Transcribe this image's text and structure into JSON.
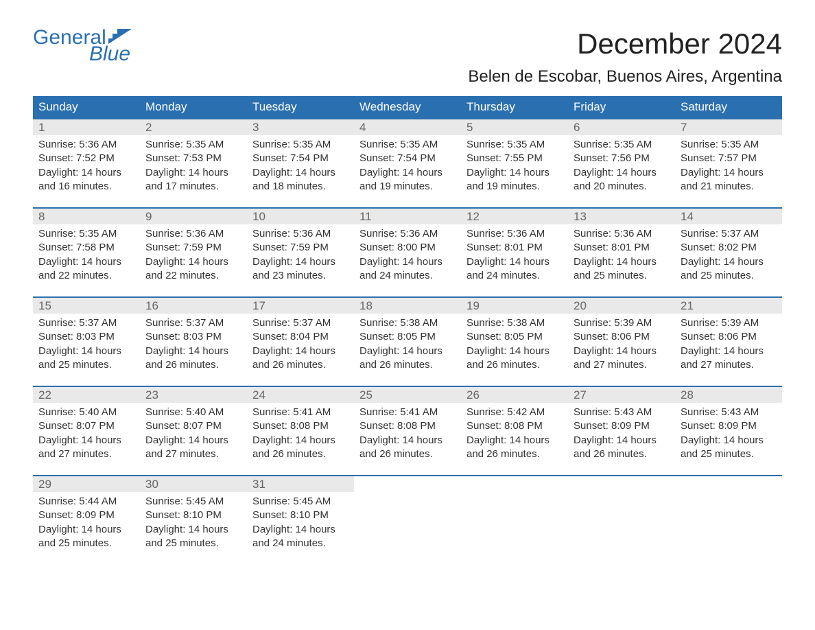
{
  "brand": {
    "word1": "General",
    "word2": "Blue",
    "text_color": "#2a6fb0",
    "flag_color": "#2a6fb0"
  },
  "title": "December 2024",
  "subtitle": "Belen de Escobar, Buenos Aires, Argentina",
  "colors": {
    "header_bg": "#2a6fb0",
    "header_text": "#ffffff",
    "daynum_bg": "#e9e9e9",
    "daynum_text": "#666666",
    "body_text": "#333333",
    "row_border": "#2a6fb0",
    "page_bg": "#ffffff"
  },
  "typography": {
    "title_fontsize": 42,
    "subtitle_fontsize": 24,
    "header_fontsize": 17,
    "daynum_fontsize": 17,
    "body_fontsize": 15
  },
  "day_headers": [
    "Sunday",
    "Monday",
    "Tuesday",
    "Wednesday",
    "Thursday",
    "Friday",
    "Saturday"
  ],
  "weeks": [
    [
      {
        "day": "1",
        "sunrise": "Sunrise: 5:36 AM",
        "sunset": "Sunset: 7:52 PM",
        "daylight1": "Daylight: 14 hours",
        "daylight2": "and 16 minutes."
      },
      {
        "day": "2",
        "sunrise": "Sunrise: 5:35 AM",
        "sunset": "Sunset: 7:53 PM",
        "daylight1": "Daylight: 14 hours",
        "daylight2": "and 17 minutes."
      },
      {
        "day": "3",
        "sunrise": "Sunrise: 5:35 AM",
        "sunset": "Sunset: 7:54 PM",
        "daylight1": "Daylight: 14 hours",
        "daylight2": "and 18 minutes."
      },
      {
        "day": "4",
        "sunrise": "Sunrise: 5:35 AM",
        "sunset": "Sunset: 7:54 PM",
        "daylight1": "Daylight: 14 hours",
        "daylight2": "and 19 minutes."
      },
      {
        "day": "5",
        "sunrise": "Sunrise: 5:35 AM",
        "sunset": "Sunset: 7:55 PM",
        "daylight1": "Daylight: 14 hours",
        "daylight2": "and 19 minutes."
      },
      {
        "day": "6",
        "sunrise": "Sunrise: 5:35 AM",
        "sunset": "Sunset: 7:56 PM",
        "daylight1": "Daylight: 14 hours",
        "daylight2": "and 20 minutes."
      },
      {
        "day": "7",
        "sunrise": "Sunrise: 5:35 AM",
        "sunset": "Sunset: 7:57 PM",
        "daylight1": "Daylight: 14 hours",
        "daylight2": "and 21 minutes."
      }
    ],
    [
      {
        "day": "8",
        "sunrise": "Sunrise: 5:35 AM",
        "sunset": "Sunset: 7:58 PM",
        "daylight1": "Daylight: 14 hours",
        "daylight2": "and 22 minutes."
      },
      {
        "day": "9",
        "sunrise": "Sunrise: 5:36 AM",
        "sunset": "Sunset: 7:59 PM",
        "daylight1": "Daylight: 14 hours",
        "daylight2": "and 22 minutes."
      },
      {
        "day": "10",
        "sunrise": "Sunrise: 5:36 AM",
        "sunset": "Sunset: 7:59 PM",
        "daylight1": "Daylight: 14 hours",
        "daylight2": "and 23 minutes."
      },
      {
        "day": "11",
        "sunrise": "Sunrise: 5:36 AM",
        "sunset": "Sunset: 8:00 PM",
        "daylight1": "Daylight: 14 hours",
        "daylight2": "and 24 minutes."
      },
      {
        "day": "12",
        "sunrise": "Sunrise: 5:36 AM",
        "sunset": "Sunset: 8:01 PM",
        "daylight1": "Daylight: 14 hours",
        "daylight2": "and 24 minutes."
      },
      {
        "day": "13",
        "sunrise": "Sunrise: 5:36 AM",
        "sunset": "Sunset: 8:01 PM",
        "daylight1": "Daylight: 14 hours",
        "daylight2": "and 25 minutes."
      },
      {
        "day": "14",
        "sunrise": "Sunrise: 5:37 AM",
        "sunset": "Sunset: 8:02 PM",
        "daylight1": "Daylight: 14 hours",
        "daylight2": "and 25 minutes."
      }
    ],
    [
      {
        "day": "15",
        "sunrise": "Sunrise: 5:37 AM",
        "sunset": "Sunset: 8:03 PM",
        "daylight1": "Daylight: 14 hours",
        "daylight2": "and 25 minutes."
      },
      {
        "day": "16",
        "sunrise": "Sunrise: 5:37 AM",
        "sunset": "Sunset: 8:03 PM",
        "daylight1": "Daylight: 14 hours",
        "daylight2": "and 26 minutes."
      },
      {
        "day": "17",
        "sunrise": "Sunrise: 5:37 AM",
        "sunset": "Sunset: 8:04 PM",
        "daylight1": "Daylight: 14 hours",
        "daylight2": "and 26 minutes."
      },
      {
        "day": "18",
        "sunrise": "Sunrise: 5:38 AM",
        "sunset": "Sunset: 8:05 PM",
        "daylight1": "Daylight: 14 hours",
        "daylight2": "and 26 minutes."
      },
      {
        "day": "19",
        "sunrise": "Sunrise: 5:38 AM",
        "sunset": "Sunset: 8:05 PM",
        "daylight1": "Daylight: 14 hours",
        "daylight2": "and 26 minutes."
      },
      {
        "day": "20",
        "sunrise": "Sunrise: 5:39 AM",
        "sunset": "Sunset: 8:06 PM",
        "daylight1": "Daylight: 14 hours",
        "daylight2": "and 27 minutes."
      },
      {
        "day": "21",
        "sunrise": "Sunrise: 5:39 AM",
        "sunset": "Sunset: 8:06 PM",
        "daylight1": "Daylight: 14 hours",
        "daylight2": "and 27 minutes."
      }
    ],
    [
      {
        "day": "22",
        "sunrise": "Sunrise: 5:40 AM",
        "sunset": "Sunset: 8:07 PM",
        "daylight1": "Daylight: 14 hours",
        "daylight2": "and 27 minutes."
      },
      {
        "day": "23",
        "sunrise": "Sunrise: 5:40 AM",
        "sunset": "Sunset: 8:07 PM",
        "daylight1": "Daylight: 14 hours",
        "daylight2": "and 27 minutes."
      },
      {
        "day": "24",
        "sunrise": "Sunrise: 5:41 AM",
        "sunset": "Sunset: 8:08 PM",
        "daylight1": "Daylight: 14 hours",
        "daylight2": "and 26 minutes."
      },
      {
        "day": "25",
        "sunrise": "Sunrise: 5:41 AM",
        "sunset": "Sunset: 8:08 PM",
        "daylight1": "Daylight: 14 hours",
        "daylight2": "and 26 minutes."
      },
      {
        "day": "26",
        "sunrise": "Sunrise: 5:42 AM",
        "sunset": "Sunset: 8:08 PM",
        "daylight1": "Daylight: 14 hours",
        "daylight2": "and 26 minutes."
      },
      {
        "day": "27",
        "sunrise": "Sunrise: 5:43 AM",
        "sunset": "Sunset: 8:09 PM",
        "daylight1": "Daylight: 14 hours",
        "daylight2": "and 26 minutes."
      },
      {
        "day": "28",
        "sunrise": "Sunrise: 5:43 AM",
        "sunset": "Sunset: 8:09 PM",
        "daylight1": "Daylight: 14 hours",
        "daylight2": "and 25 minutes."
      }
    ],
    [
      {
        "day": "29",
        "sunrise": "Sunrise: 5:44 AM",
        "sunset": "Sunset: 8:09 PM",
        "daylight1": "Daylight: 14 hours",
        "daylight2": "and 25 minutes."
      },
      {
        "day": "30",
        "sunrise": "Sunrise: 5:45 AM",
        "sunset": "Sunset: 8:10 PM",
        "daylight1": "Daylight: 14 hours",
        "daylight2": "and 25 minutes."
      },
      {
        "day": "31",
        "sunrise": "Sunrise: 5:45 AM",
        "sunset": "Sunset: 8:10 PM",
        "daylight1": "Daylight: 14 hours",
        "daylight2": "and 24 minutes."
      },
      null,
      null,
      null,
      null
    ]
  ]
}
